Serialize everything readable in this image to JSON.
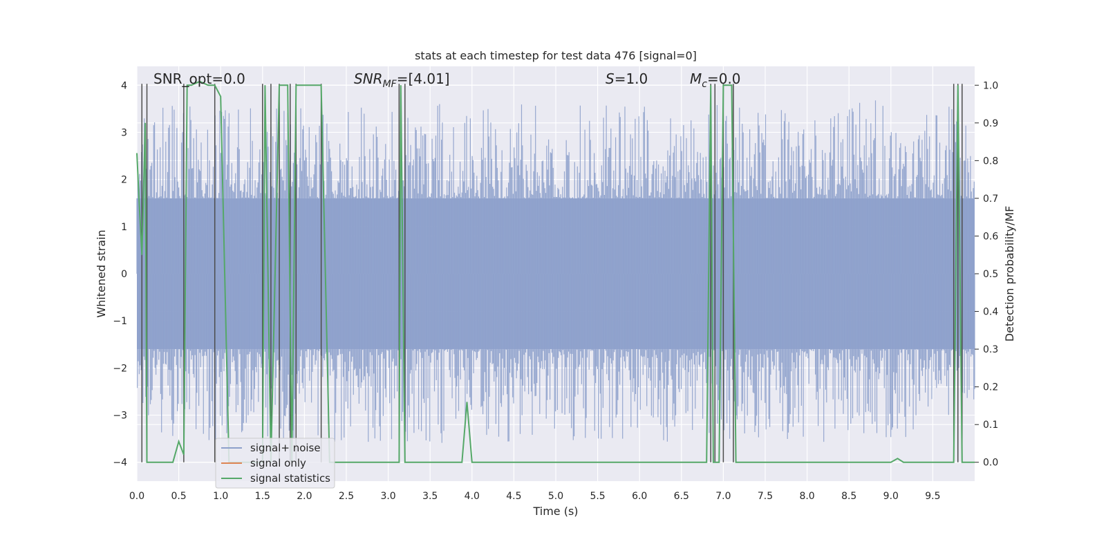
{
  "chart_data": {
    "type": "line",
    "title": "stats at each timestep for test data 476 [signal=0]",
    "xlabel": "Time (s)",
    "ylabel": "Whitened strain",
    "y2label": "Detection probability/MF",
    "xlim": [
      0,
      10
    ],
    "ylim": [
      -4.4,
      4.4
    ],
    "y2lim": [
      -0.05,
      1.05
    ],
    "x_ticks": [
      "0.0",
      "0.5",
      "1.0",
      "1.5",
      "2.0",
      "2.5",
      "3.0",
      "3.5",
      "4.0",
      "4.5",
      "5.0",
      "5.5",
      "6.0",
      "6.5",
      "7.0",
      "7.5",
      "8.0",
      "8.5",
      "9.0",
      "9.5"
    ],
    "x_tick_values": [
      0,
      0.5,
      1,
      1.5,
      2,
      2.5,
      3,
      3.5,
      4,
      4.5,
      5,
      5.5,
      6,
      6.5,
      7,
      7.5,
      8,
      8.5,
      9,
      9.5
    ],
    "y_ticks": [
      "−4",
      "−3",
      "−2",
      "−1",
      "0",
      "1",
      "2",
      "3",
      "4"
    ],
    "y_tick_values": [
      -4,
      -3,
      -2,
      -1,
      0,
      1,
      2,
      3,
      4
    ],
    "y2_ticks": [
      "0.0",
      "0.1",
      "0.2",
      "0.3",
      "0.4",
      "0.5",
      "0.6",
      "0.7",
      "0.8",
      "0.9",
      "1.0"
    ],
    "y2_tick_values": [
      0,
      0.1,
      0.2,
      0.3,
      0.4,
      0.5,
      0.6,
      0.7,
      0.8,
      0.9,
      1.0
    ],
    "grid": true,
    "legend_position": "lower-left",
    "annotations": {
      "snr_opt": "SNR_opt=0.0",
      "snr_mf": "SNR",
      "snr_mf_sub": "MF",
      "snr_mf_val": "=[4.01]",
      "s_label": "S",
      "s_val": "=1.0",
      "mc_label": "M",
      "mc_sub": "c",
      "mc_val": "=0.0"
    },
    "series": [
      {
        "name": "signal+ noise",
        "color": "#8da0cb",
        "description_values": "noise band, core amplitude ±1.6 with spikes to ±3.6"
      },
      {
        "name": "signal only",
        "color": "#dd8452",
        "values": []
      },
      {
        "name": "signal statistics",
        "color": "#55a868",
        "axis": "right",
        "x": [
          0.0,
          0.03,
          0.06,
          0.1,
          0.12,
          0.2,
          0.43,
          0.5,
          0.56,
          0.6,
          0.65,
          0.75,
          0.85,
          0.93,
          1.0,
          1.1,
          1.5,
          1.53,
          1.6,
          1.7,
          1.75,
          1.8,
          1.85,
          1.9,
          1.94,
          2.2,
          2.3,
          3.13,
          3.15,
          3.2,
          3.25,
          3.88,
          3.94,
          4.0,
          4.1,
          6.8,
          6.85,
          6.88,
          6.95,
          7.0,
          7.05,
          7.1,
          7.15,
          7.25,
          7.35,
          9.0,
          9.08,
          9.15,
          9.65,
          9.75,
          9.8,
          9.85,
          9.9,
          10.0
        ],
        "values": [
          0.82,
          0.68,
          0.55,
          0.9,
          0.0,
          0.0,
          0.0,
          0.055,
          0.02,
          1.0,
          1.0,
          1.01,
          1.0,
          1.0,
          0.97,
          0.0,
          0.0,
          1.0,
          0.0,
          1.0,
          1.0,
          1.0,
          0.0,
          1.0,
          1.0,
          1.0,
          0.0,
          0.0,
          1.0,
          0.0,
          0.0,
          0.0,
          0.16,
          0.0,
          0.0,
          0.0,
          1.0,
          0.0,
          0.0,
          1.0,
          1.0,
          1.0,
          0.0,
          0.0,
          0.0,
          0.0,
          0.01,
          0.0,
          0.0,
          0.0,
          1.0,
          0.0,
          0.0,
          0.0
        ]
      }
    ],
    "vertical_lines_x": [
      0.06,
      0.12,
      0.56,
      0.93,
      1.5,
      1.6,
      1.7,
      1.83,
      1.9,
      2.2,
      3.13,
      3.2,
      6.85,
      6.9,
      7.0,
      7.12,
      9.75,
      9.8,
      9.85
    ]
  },
  "legend": {
    "items": [
      "signal+ noise",
      "signal only",
      "signal statistics"
    ]
  }
}
